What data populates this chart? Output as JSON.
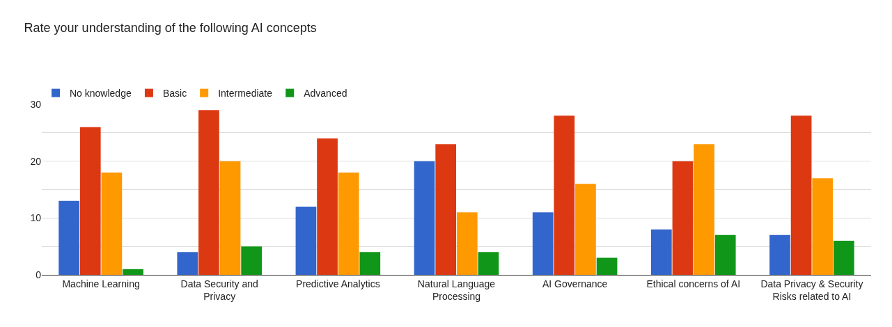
{
  "chart_data": {
    "type": "bar",
    "title": "Rate your understanding of the following AI concepts",
    "categories": [
      "Machine Learning",
      "Data Security and Privacy",
      "Predictive Analytics",
      "Natural Language Processing",
      "AI Governance",
      "Ethical concerns of AI",
      "Data Privacy & Security Risks related to AI"
    ],
    "series": [
      {
        "name": "No knowledge",
        "color": "#3366cc",
        "values": [
          13,
          4,
          12,
          20,
          11,
          8,
          7
        ]
      },
      {
        "name": "Basic",
        "color": "#dc3912",
        "values": [
          26,
          29,
          24,
          23,
          28,
          20,
          28
        ]
      },
      {
        "name": "Intermediate",
        "color": "#ff9900",
        "values": [
          18,
          20,
          18,
          11,
          16,
          23,
          17
        ]
      },
      {
        "name": "Advanced",
        "color": "#109618",
        "values": [
          1,
          5,
          4,
          4,
          3,
          7,
          6
        ]
      }
    ],
    "ylim": [
      0,
      30
    ],
    "yticks": [
      0,
      {
        "value": 5,
        "label": null
      },
      10,
      {
        "value": 15,
        "label": null
      },
      20,
      {
        "value": 25,
        "label": null
      },
      30
    ],
    "grid": "y",
    "legend": "top left"
  }
}
